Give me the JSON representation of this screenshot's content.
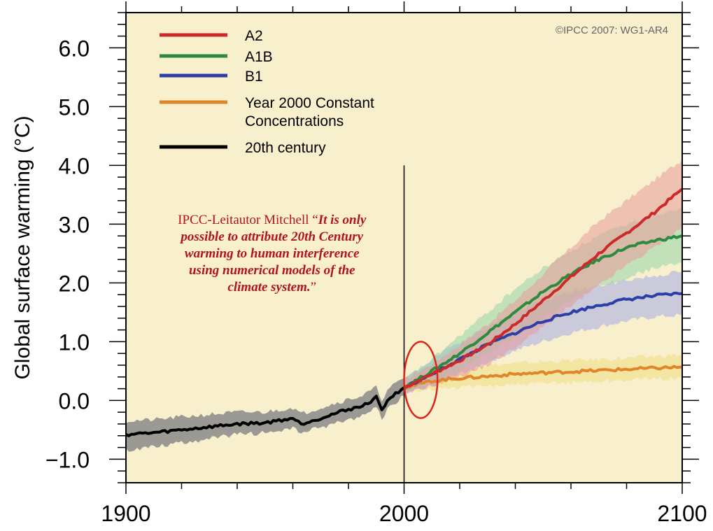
{
  "chart_data": {
    "type": "line",
    "ylabel": "Global surface warming (°C)",
    "xlim": [
      1900,
      2100
    ],
    "ylim": [
      -1.4,
      6.6
    ],
    "x_ticks": [
      1900,
      2000,
      2100
    ],
    "y_ticks": [
      -1.0,
      0.0,
      1.0,
      2.0,
      3.0,
      4.0,
      5.0,
      6.0
    ],
    "y_tick_labels": [
      "−1.0",
      "0.0",
      "1.0",
      "2.0",
      "3.0",
      "4.0",
      "5.0",
      "6.0"
    ],
    "grid": false,
    "legend_position": "top-left",
    "background_color": "#f8efcd",
    "copyright": "©IPCC  2007: WG1-AR4",
    "series": [
      {
        "name": "A2",
        "color": "#cc2a2a",
        "band_color": "#e79a9a",
        "x": [
          2000,
          2010,
          2020,
          2030,
          2040,
          2050,
          2060,
          2070,
          2080,
          2090,
          2100
        ],
        "values": [
          0.22,
          0.45,
          0.68,
          0.95,
          1.3,
          1.7,
          2.1,
          2.5,
          2.85,
          3.2,
          3.6
        ],
        "lower": [
          0.1,
          0.25,
          0.4,
          0.6,
          0.9,
          1.25,
          1.6,
          1.95,
          2.3,
          2.6,
          2.95
        ],
        "upper": [
          0.35,
          0.62,
          0.95,
          1.3,
          1.7,
          2.15,
          2.6,
          3.05,
          3.4,
          3.75,
          4.1
        ]
      },
      {
        "name": "A1B",
        "color": "#2e8a3e",
        "band_color": "#98d6a8",
        "x": [
          2000,
          2010,
          2020,
          2030,
          2040,
          2050,
          2060,
          2070,
          2080,
          2090,
          2100
        ],
        "values": [
          0.22,
          0.5,
          0.8,
          1.15,
          1.5,
          1.85,
          2.15,
          2.4,
          2.6,
          2.72,
          2.8
        ],
        "lower": [
          0.1,
          0.3,
          0.5,
          0.8,
          1.1,
          1.4,
          1.7,
          1.95,
          2.1,
          2.25,
          2.35
        ],
        "upper": [
          0.35,
          0.7,
          1.1,
          1.5,
          1.9,
          2.25,
          2.55,
          2.8,
          3.0,
          3.15,
          3.3
        ]
      },
      {
        "name": "B1",
        "color": "#2d3fa6",
        "band_color": "#a5abe8",
        "x": [
          2000,
          2010,
          2020,
          2030,
          2040,
          2050,
          2060,
          2070,
          2080,
          2090,
          2100
        ],
        "values": [
          0.22,
          0.45,
          0.7,
          0.95,
          1.15,
          1.35,
          1.5,
          1.62,
          1.72,
          1.78,
          1.82
        ],
        "lower": [
          0.1,
          0.25,
          0.45,
          0.65,
          0.85,
          1.0,
          1.15,
          1.25,
          1.35,
          1.42,
          1.45
        ],
        "upper": [
          0.35,
          0.7,
          1.0,
          1.25,
          1.5,
          1.7,
          1.85,
          1.95,
          2.05,
          2.12,
          2.2
        ]
      },
      {
        "name": "Year 2000 Constant Concentrations",
        "color": "#e0862a",
        "band_color": "#eedd80",
        "x": [
          2000,
          2010,
          2020,
          2030,
          2040,
          2050,
          2060,
          2070,
          2080,
          2090,
          2100
        ],
        "values": [
          0.22,
          0.33,
          0.38,
          0.41,
          0.45,
          0.47,
          0.49,
          0.51,
          0.53,
          0.55,
          0.57
        ],
        "lower": [
          0.15,
          0.2,
          0.22,
          0.25,
          0.27,
          0.29,
          0.31,
          0.33,
          0.35,
          0.37,
          0.38
        ],
        "upper": [
          0.3,
          0.48,
          0.55,
          0.6,
          0.63,
          0.66,
          0.68,
          0.7,
          0.72,
          0.75,
          0.78
        ]
      },
      {
        "name": "20th century",
        "color": "#000000",
        "band_color": "#8a8a8a",
        "x": [
          1900,
          1910,
          1920,
          1930,
          1940,
          1950,
          1960,
          1963,
          1970,
          1980,
          1985,
          1990,
          1992,
          1995,
          2000
        ],
        "values": [
          -0.58,
          -0.55,
          -0.5,
          -0.45,
          -0.4,
          -0.38,
          -0.3,
          -0.4,
          -0.3,
          -0.15,
          -0.1,
          0.05,
          -0.15,
          0.05,
          0.22
        ],
        "lower": [
          -0.85,
          -0.78,
          -0.72,
          -0.65,
          -0.58,
          -0.55,
          -0.48,
          -0.55,
          -0.46,
          -0.33,
          -0.26,
          -0.12,
          -0.3,
          -0.1,
          0.08
        ],
        "upper": [
          -0.35,
          -0.33,
          -0.28,
          -0.24,
          -0.2,
          -0.2,
          -0.12,
          -0.23,
          -0.12,
          0.02,
          0.08,
          0.22,
          0.02,
          0.22,
          0.38
        ]
      }
    ],
    "legend": [
      {
        "label": "A2",
        "color": "#cc2a2a"
      },
      {
        "label": "A1B",
        "color": "#2e8a3e"
      },
      {
        "label": "B1",
        "color": "#2d3fa6"
      },
      {
        "label_lines": [
          "Year 2000 Constant",
          "Concentrations"
        ],
        "color": "#e0862a"
      },
      {
        "label": "20th century",
        "color": "#000000"
      }
    ],
    "annotations": {
      "vertical_line_year": 2000,
      "highlight_ellipse": {
        "x_center": 2006,
        "y_center": 0.35,
        "x_half_range": 6,
        "y_half_range": 0.65,
        "color": "#d8261c"
      },
      "quote": {
        "color": "#b0141e",
        "lines": [
          [
            {
              "text": "IPCC-Leitautor Mitchell “",
              "style": "normal"
            },
            {
              "text": "It is only",
              "style": "bold-italic"
            }
          ],
          [
            {
              "text": "possible to attribute 20th Century",
              "style": "bold-italic"
            }
          ],
          [
            {
              "text": "warming to human interference",
              "style": "bold-italic"
            }
          ],
          [
            {
              "text": "using numerical models of the",
              "style": "bold-italic"
            }
          ],
          [
            {
              "text": "climate system.",
              "style": "bold-italic"
            },
            {
              "text": "”",
              "style": "normal"
            }
          ]
        ]
      }
    }
  }
}
